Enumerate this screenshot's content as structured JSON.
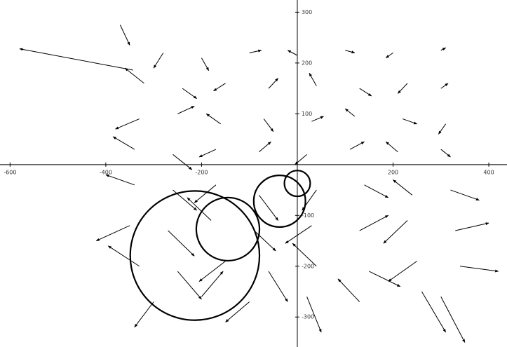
{
  "chart_data": {
    "type": "vector",
    "xlim": [
      -621,
      438
    ],
    "ylim": [
      -359,
      324
    ],
    "xticks": [
      -600,
      -400,
      -200,
      200,
      400
    ],
    "yticks": [
      -300,
      -200,
      -100,
      100,
      200,
      300
    ],
    "color": "#000000",
    "arrows": {
      "x": [
        -280,
        -200,
        -100,
        0,
        100,
        200,
        300,
        -320,
        -240,
        -150,
        -60,
        40,
        130,
        230,
        300,
        -330,
        -250,
        -160,
        -70,
        30,
        120,
        220,
        310,
        -340,
        -260,
        -170,
        -80,
        20,
        110,
        210,
        300,
        -340,
        -260,
        -170,
        -80,
        40,
        140,
        240,
        320,
        -350,
        -270,
        -180,
        -90,
        30,
        130,
        230,
        330,
        -330,
        -250,
        -150,
        -60,
        40,
        150,
        250,
        340,
        -300,
        -200,
        -100,
        20,
        130,
        260,
        -343,
        300,
        -370
      ],
      "y": [
        220,
        210,
        220,
        215,
        225,
        220,
        225,
        160,
        150,
        160,
        150,
        155,
        150,
        160,
        150,
        90,
        100,
        80,
        90,
        85,
        95,
        90,
        80,
        30,
        20,
        30,
        25,
        20,
        30,
        25,
        30,
        -40,
        -50,
        -40,
        -60,
        -50,
        -40,
        -60,
        -50,
        -120,
        -130,
        -110,
        -130,
        -120,
        -130,
        -110,
        -130,
        -200,
        -210,
        -190,
        -210,
        -200,
        -210,
        -190,
        -200,
        -270,
        -260,
        -270,
        -260,
        -270,
        -250,
        186,
        -260,
        275
      ],
      "u": [
        -20,
        15,
        25,
        -20,
        20,
        -15,
        10,
        -40,
        30,
        -25,
        20,
        -15,
        25,
        -20,
        15,
        -50,
        35,
        -30,
        20,
        25,
        -20,
        30,
        -15,
        -45,
        40,
        -35,
        25,
        -25,
        30,
        -25,
        20,
        -60,
        50,
        -45,
        40,
        -30,
        50,
        -40,
        60,
        -70,
        55,
        -50,
        45,
        -55,
        60,
        -50,
        70,
        -65,
        50,
        -55,
        40,
        -50,
        65,
        -60,
        80,
        -40,
        45,
        -50,
        30,
        -45,
        50,
        -237,
        50,
        20
      ],
      "v": [
        -30,
        -25,
        5,
        10,
        -5,
        -10,
        5,
        30,
        -20,
        -15,
        20,
        25,
        -15,
        -20,
        10,
        -20,
        15,
        20,
        -25,
        10,
        15,
        -10,
        -20,
        25,
        -30,
        -15,
        20,
        -20,
        15,
        20,
        -15,
        20,
        -40,
        -35,
        -50,
        -40,
        -25,
        30,
        -20,
        -30,
        -50,
        45,
        -40,
        -35,
        30,
        -45,
        15,
        40,
        -55,
        -40,
        -60,
        45,
        -30,
        -40,
        -10,
        -50,
        50,
        -40,
        -70,
        45,
        -80,
        42,
        -90,
        -40
      ]
    },
    "circles": {
      "x": [
        0,
        -37,
        -145,
        -214
      ],
      "y": [
        -37,
        -72,
        -127,
        -179
      ],
      "r": [
        27,
        54,
        66,
        135
      ]
    }
  }
}
